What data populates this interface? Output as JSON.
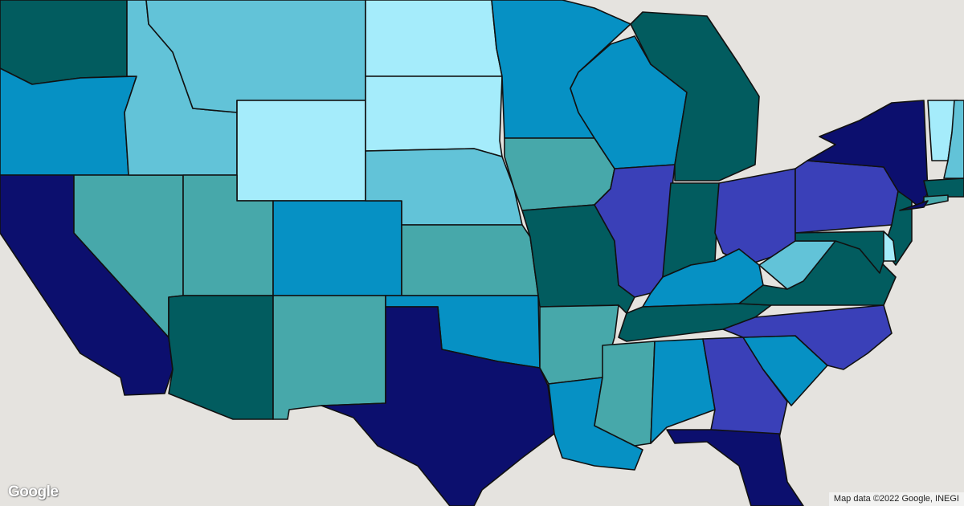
{
  "map": {
    "type": "choropleth",
    "region": "United States",
    "background_color": "#e5e3df",
    "palette": {
      "navy": "#0c0f6e",
      "purple": "#3a40b8",
      "dark_teal": "#025c5f",
      "blue": "#0691c4",
      "teal": "#47a8aa",
      "medium_cyan": "#62c3d8",
      "light_cyan": "#a5ecfb"
    },
    "states": {
      "WA": "dark_teal",
      "OR": "blue",
      "CA": "navy",
      "NV": "teal",
      "ID": "medium_cyan",
      "MT": "medium_cyan",
      "WY": "light_cyan",
      "UT": "teal",
      "AZ": "dark_teal",
      "CO": "blue",
      "NM": "teal",
      "ND": "light_cyan",
      "SD": "light_cyan",
      "NE": "medium_cyan",
      "KS": "teal",
      "OK": "blue",
      "TX": "navy",
      "MN": "blue",
      "IA": "teal",
      "MO": "dark_teal",
      "AR": "teal",
      "LA": "blue",
      "WI": "blue",
      "IL": "purple",
      "MI": "dark_teal",
      "IN": "dark_teal",
      "OH": "purple",
      "KY": "blue",
      "TN": "dark_teal",
      "MS": "teal",
      "AL": "blue",
      "GA": "purple",
      "FL": "navy",
      "SC": "blue",
      "NC": "purple",
      "VA": "dark_teal",
      "WV": "medium_cyan",
      "PA": "purple",
      "NY": "navy",
      "NJ": "dark_teal",
      "MD": "dark_teal",
      "DE": "light_cyan",
      "VT": "light_cyan",
      "NH": "medium_cyan",
      "MA": "dark_teal",
      "CT": "teal",
      "LI": "navy"
    }
  },
  "branding": {
    "logo_text": "Google"
  },
  "attribution": "Map data ©2022 Google, INEGI"
}
